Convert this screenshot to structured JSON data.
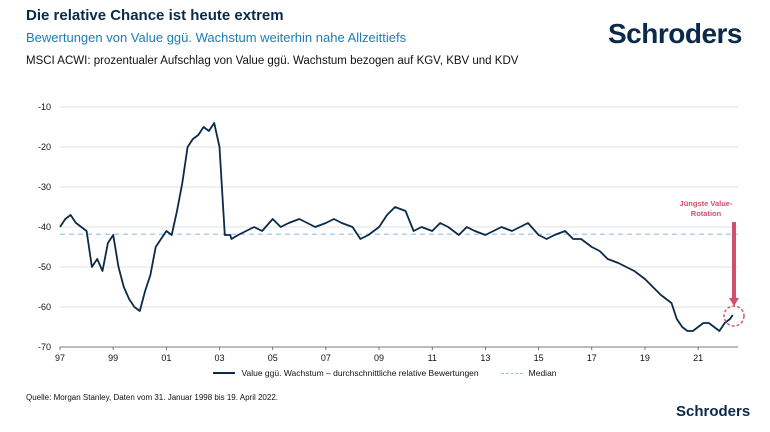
{
  "header": {
    "title": "Die relative Chance ist heute extrem",
    "subtitle": "Bewertungen von Value ggü. Wachstum weiterhin nahe Allzeittiefs",
    "description": "MSCI ACWI: prozentualer Aufschlag von Value ggü. Wachstum bezogen auf KGV, KBV und KDV"
  },
  "brand": {
    "logo": "Schroders",
    "logo_small": "Schroders"
  },
  "footer": {
    "source": "Quelle: Morgan Stanley, Daten vom 31. Januar 1998 bis 19. April 2022."
  },
  "colors": {
    "series": "#0b2a4a",
    "median": "#8fc4e8",
    "annotation": "#d1506d"
  },
  "chart_data": {
    "type": "line",
    "ylim": [
      -70,
      -10
    ],
    "yticks": [
      -10,
      -20,
      -30,
      -40,
      -50,
      -60,
      -70
    ],
    "xlim": [
      1997,
      2022.5
    ],
    "xtick_values": [
      1997,
      1999,
      2001,
      2003,
      2005,
      2007,
      2009,
      2011,
      2013,
      2015,
      2017,
      2019,
      2021
    ],
    "xtick_labels": [
      "97",
      "99",
      "01",
      "03",
      "05",
      "07",
      "09",
      "11",
      "13",
      "15",
      "17",
      "19",
      "21"
    ],
    "grid": "horizontal",
    "legend_position": "bottom",
    "median": -41.8,
    "annotation": {
      "text_line1": "Jüngste Value-",
      "text_line2": "Rotation"
    },
    "series": [
      {
        "name": "Value ggü. Wachstum – durchschnittliche relative Bewertungen",
        "x": [
          1997.0,
          1997.2,
          1997.4,
          1997.6,
          1997.8,
          1998.0,
          1998.2,
          1998.4,
          1998.6,
          1998.8,
          1999.0,
          1999.2,
          1999.4,
          1999.6,
          1999.8,
          2000.0,
          2000.2,
          2000.4,
          2000.6,
          2000.8,
          2001.0,
          2001.2,
          2001.4,
          2001.6,
          2001.8,
          2002.0,
          2002.2,
          2002.4,
          2002.6,
          2002.8,
          2003.0,
          2003.2,
          2003.4,
          2003.45,
          2003.7,
          2004.0,
          2004.3,
          2004.6,
          2005.0,
          2005.3,
          2005.6,
          2006.0,
          2006.3,
          2006.6,
          2007.0,
          2007.3,
          2007.6,
          2008.0,
          2008.3,
          2008.6,
          2009.0,
          2009.3,
          2009.6,
          2010.0,
          2010.3,
          2010.6,
          2011.0,
          2011.3,
          2011.6,
          2012.0,
          2012.3,
          2012.6,
          2013.0,
          2013.3,
          2013.6,
          2014.0,
          2014.3,
          2014.6,
          2015.0,
          2015.3,
          2015.6,
          2016.0,
          2016.3,
          2016.6,
          2017.0,
          2017.3,
          2017.6,
          2018.0,
          2018.3,
          2018.6,
          2019.0,
          2019.3,
          2019.6,
          2020.0,
          2020.2,
          2020.4,
          2020.6,
          2020.8,
          2021.0,
          2021.2,
          2021.4,
          2021.6,
          2021.8,
          2022.0,
          2022.2,
          2022.3
        ],
        "y": [
          -40,
          -38,
          -37,
          -39,
          -40,
          -41,
          -50,
          -48,
          -51,
          -44,
          -42,
          -50,
          -55,
          -58,
          -60,
          -61,
          -56,
          -52,
          -45,
          -43,
          -41,
          -42,
          -36,
          -29,
          -20,
          -18,
          -17,
          -15,
          -16,
          -14,
          -20,
          -42,
          -42,
          -43,
          -42,
          -41,
          -40,
          -41,
          -38,
          -40,
          -39,
          -38,
          -39,
          -40,
          -39,
          -38,
          -39,
          -40,
          -43,
          -42,
          -40,
          -37,
          -35,
          -36,
          -41,
          -40,
          -41,
          -39,
          -40,
          -42,
          -40,
          -41,
          -42,
          -41,
          -40,
          -41,
          -40,
          -39,
          -42,
          -43,
          -42,
          -41,
          -43,
          -43,
          -45,
          -46,
          -48,
          -49,
          -50,
          -51,
          -53,
          -55,
          -57,
          -59,
          -63,
          -65,
          -66,
          -66,
          -65,
          -64,
          -64,
          -65,
          -66,
          -64,
          -63,
          -62
        ]
      },
      {
        "name": "Median"
      }
    ]
  }
}
